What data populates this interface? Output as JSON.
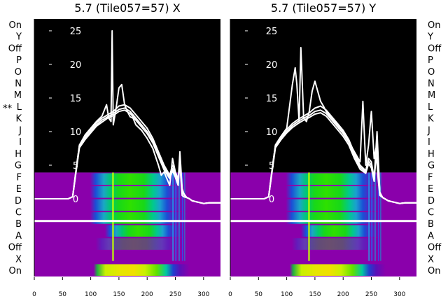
{
  "chart_data": [
    {
      "type": "heatmap",
      "title": "5.7 (Tile057=57) X",
      "row_labels": [
        "On",
        "Y",
        "Off",
        "P",
        "O",
        "N",
        "M",
        "L",
        "K",
        "J",
        "I",
        "H",
        "G",
        "F",
        "E",
        "D",
        "C",
        "B",
        "A",
        "Off",
        "X",
        "On"
      ],
      "marked_row": "L",
      "marked_row_prefix": "**",
      "x_ticks": [
        0,
        50,
        100,
        150,
        200,
        250,
        300
      ],
      "xlim": [
        0,
        330
      ],
      "y_ticks": [
        0,
        5,
        10,
        15,
        20,
        25
      ],
      "ylim": [
        -3,
        27
      ],
      "baseline_row": "B",
      "series": [
        {
          "x": [
            0,
            60,
            68,
            75,
            80,
            90,
            100,
            110,
            120,
            128,
            132,
            136,
            138,
            140,
            145,
            150,
            155,
            160,
            165,
            170,
            175,
            180,
            190,
            200,
            210,
            220,
            225,
            230,
            235,
            240,
            245,
            250,
            255,
            258,
            262,
            265,
            270,
            275,
            280,
            290,
            300,
            310,
            320,
            330
          ],
          "y": [
            0,
            0,
            0.3,
            5,
            8,
            9.5,
            10.5,
            11.5,
            12.3,
            14,
            12,
            11.5,
            25,
            11,
            13.5,
            16.5,
            17,
            14,
            13,
            12.2,
            12,
            11,
            10.2,
            9,
            7.5,
            5,
            3.5,
            4,
            3,
            2,
            6,
            4,
            3,
            5,
            0.5,
            0.3,
            0.2,
            0,
            -0.3,
            -0.5,
            -0.7,
            -0.6,
            -0.6,
            -0.6
          ]
        },
        {
          "x": [
            0,
            60,
            68,
            75,
            80,
            90,
            100,
            110,
            120,
            130,
            140,
            150,
            160,
            170,
            180,
            190,
            200,
            210,
            220,
            230,
            240,
            245,
            250,
            255,
            258,
            262,
            265,
            270,
            275,
            280,
            290,
            300,
            310,
            320,
            330
          ],
          "y": [
            0,
            0,
            0.3,
            5,
            8,
            9.3,
            10.3,
            11.3,
            12,
            12.5,
            13,
            13.8,
            14,
            13.5,
            12.5,
            11.5,
            10.5,
            9,
            7,
            5,
            3.5,
            5,
            4,
            2.5,
            7,
            1.5,
            0.8,
            0.2,
            0,
            -0.3,
            -0.5,
            -0.7,
            -0.6,
            -0.6,
            -0.6
          ]
        },
        {
          "x": [
            0,
            60,
            68,
            75,
            80,
            90,
            100,
            110,
            120,
            130,
            140,
            150,
            160,
            170,
            180,
            190,
            200,
            210,
            220,
            230,
            240,
            245,
            250,
            255,
            258,
            262,
            265,
            270,
            275,
            280,
            290,
            300,
            310,
            320,
            330
          ],
          "y": [
            0,
            0,
            0.3,
            4.8,
            7.8,
            9,
            10,
            11,
            11.7,
            12.2,
            12.7,
            13.3,
            13.5,
            13,
            12,
            11,
            10,
            8.6,
            6.6,
            4.6,
            3.2,
            4.5,
            3.5,
            2.2,
            6,
            1.3,
            0.7,
            0.2,
            0,
            -0.3,
            -0.5,
            -0.7,
            -0.6,
            -0.6,
            -0.6
          ]
        },
        {
          "x": [
            0,
            60,
            68,
            75,
            80,
            90,
            100,
            110,
            120,
            130,
            140,
            150,
            160,
            170,
            180,
            190,
            200,
            210,
            220,
            230,
            240,
            245,
            250,
            255,
            258,
            262,
            265,
            270,
            275,
            280,
            290,
            300,
            310,
            320,
            330
          ],
          "y": [
            0,
            0,
            0.3,
            4.6,
            7.6,
            8.8,
            9.8,
            10.8,
            11.4,
            12,
            12.4,
            13,
            13.2,
            12.7,
            11.7,
            10.7,
            9.7,
            8.3,
            6.3,
            4.3,
            3,
            4.2,
            3.2,
            2,
            5.5,
            1.2,
            0.6,
            0.2,
            0,
            -0.3,
            -0.5,
            -0.7,
            -0.6,
            -0.6,
            -0.6
          ]
        }
      ]
    },
    {
      "type": "heatmap",
      "title": "5.7 (Tile057=57) Y",
      "row_labels": [
        "On",
        "Y",
        "Off",
        "P",
        "O",
        "N",
        "M",
        "L",
        "K",
        "J",
        "I",
        "H",
        "G",
        "F",
        "E",
        "D",
        "C",
        "B",
        "A",
        "Off",
        "X",
        "On"
      ],
      "x_ticks": [
        0,
        50,
        100,
        150,
        200,
        250,
        300
      ],
      "xlim": [
        0,
        330
      ],
      "y_ticks": [
        0,
        5,
        10,
        15,
        20,
        25
      ],
      "ylim": [
        -3,
        27
      ],
      "baseline_row": "B",
      "series": [
        {
          "x": [
            0,
            60,
            68,
            75,
            80,
            90,
            100,
            110,
            115,
            118,
            122,
            125,
            130,
            135,
            140,
            145,
            150,
            155,
            160,
            165,
            170,
            180,
            190,
            200,
            210,
            220,
            230,
            235,
            240,
            245,
            250,
            255,
            258,
            262,
            265,
            270,
            280,
            290,
            300,
            310,
            320,
            330
          ],
          "y": [
            0,
            0,
            0.3,
            5,
            8,
            9.3,
            10.5,
            17,
            19.5,
            17,
            11.5,
            22.5,
            12,
            11.5,
            13,
            16,
            17.5,
            16,
            14.5,
            13.8,
            13,
            12,
            11,
            10,
            8.5,
            7,
            5.5,
            14.5,
            5,
            8,
            13,
            6,
            7.5,
            3,
            0.5,
            0.2,
            -0.3,
            -0.5,
            -0.7,
            -0.6,
            -0.6,
            -0.6
          ]
        },
        {
          "x": [
            0,
            60,
            68,
            75,
            80,
            90,
            100,
            110,
            120,
            130,
            140,
            150,
            160,
            170,
            180,
            190,
            200,
            210,
            220,
            230,
            240,
            245,
            250,
            255,
            260,
            265,
            270,
            280,
            290,
            300,
            310,
            320,
            330
          ],
          "y": [
            0,
            0,
            0.3,
            5,
            8,
            9.3,
            10.3,
            11.2,
            11.8,
            12.3,
            12.8,
            13.5,
            13.8,
            13.2,
            12.2,
            11.2,
            10.2,
            8.8,
            6.8,
            5,
            4.2,
            6,
            5.5,
            3,
            10,
            1,
            0.2,
            -0.3,
            -0.5,
            -0.7,
            -0.6,
            -0.6,
            -0.6
          ]
        },
        {
          "x": [
            0,
            60,
            68,
            75,
            80,
            90,
            100,
            110,
            120,
            130,
            140,
            150,
            160,
            170,
            180,
            190,
            200,
            210,
            220,
            230,
            240,
            245,
            250,
            255,
            260,
            265,
            270,
            280,
            290,
            300,
            310,
            320,
            330
          ],
          "y": [
            0,
            0,
            0.3,
            4.8,
            7.8,
            9,
            10,
            10.9,
            11.5,
            12,
            12.4,
            13,
            13.2,
            12.7,
            11.7,
            10.7,
            9.7,
            8.4,
            6.4,
            4.7,
            4,
            5.6,
            5,
            2.8,
            9,
            0.9,
            0.2,
            -0.3,
            -0.5,
            -0.7,
            -0.6,
            -0.6,
            -0.6
          ]
        },
        {
          "x": [
            0,
            60,
            68,
            75,
            80,
            90,
            100,
            110,
            120,
            130,
            140,
            150,
            160,
            170,
            180,
            190,
            200,
            210,
            220,
            230,
            240,
            245,
            250,
            255,
            260,
            265,
            270,
            280,
            290,
            300,
            310,
            320,
            330
          ],
          "y": [
            0,
            0,
            0.3,
            4.6,
            7.6,
            8.8,
            9.8,
            10.6,
            11.2,
            11.7,
            12.1,
            12.6,
            12.8,
            12.3,
            11.3,
            10.3,
            9.3,
            8,
            6,
            4.4,
            3.8,
            5.2,
            4.6,
            2.6,
            8.5,
            0.8,
            0.2,
            -0.3,
            -0.5,
            -0.7,
            -0.6,
            -0.6,
            -0.6
          ]
        }
      ]
    }
  ],
  "colors": {
    "purple": "#8a00ab",
    "background": "#000000",
    "trace": "#ffffff"
  }
}
